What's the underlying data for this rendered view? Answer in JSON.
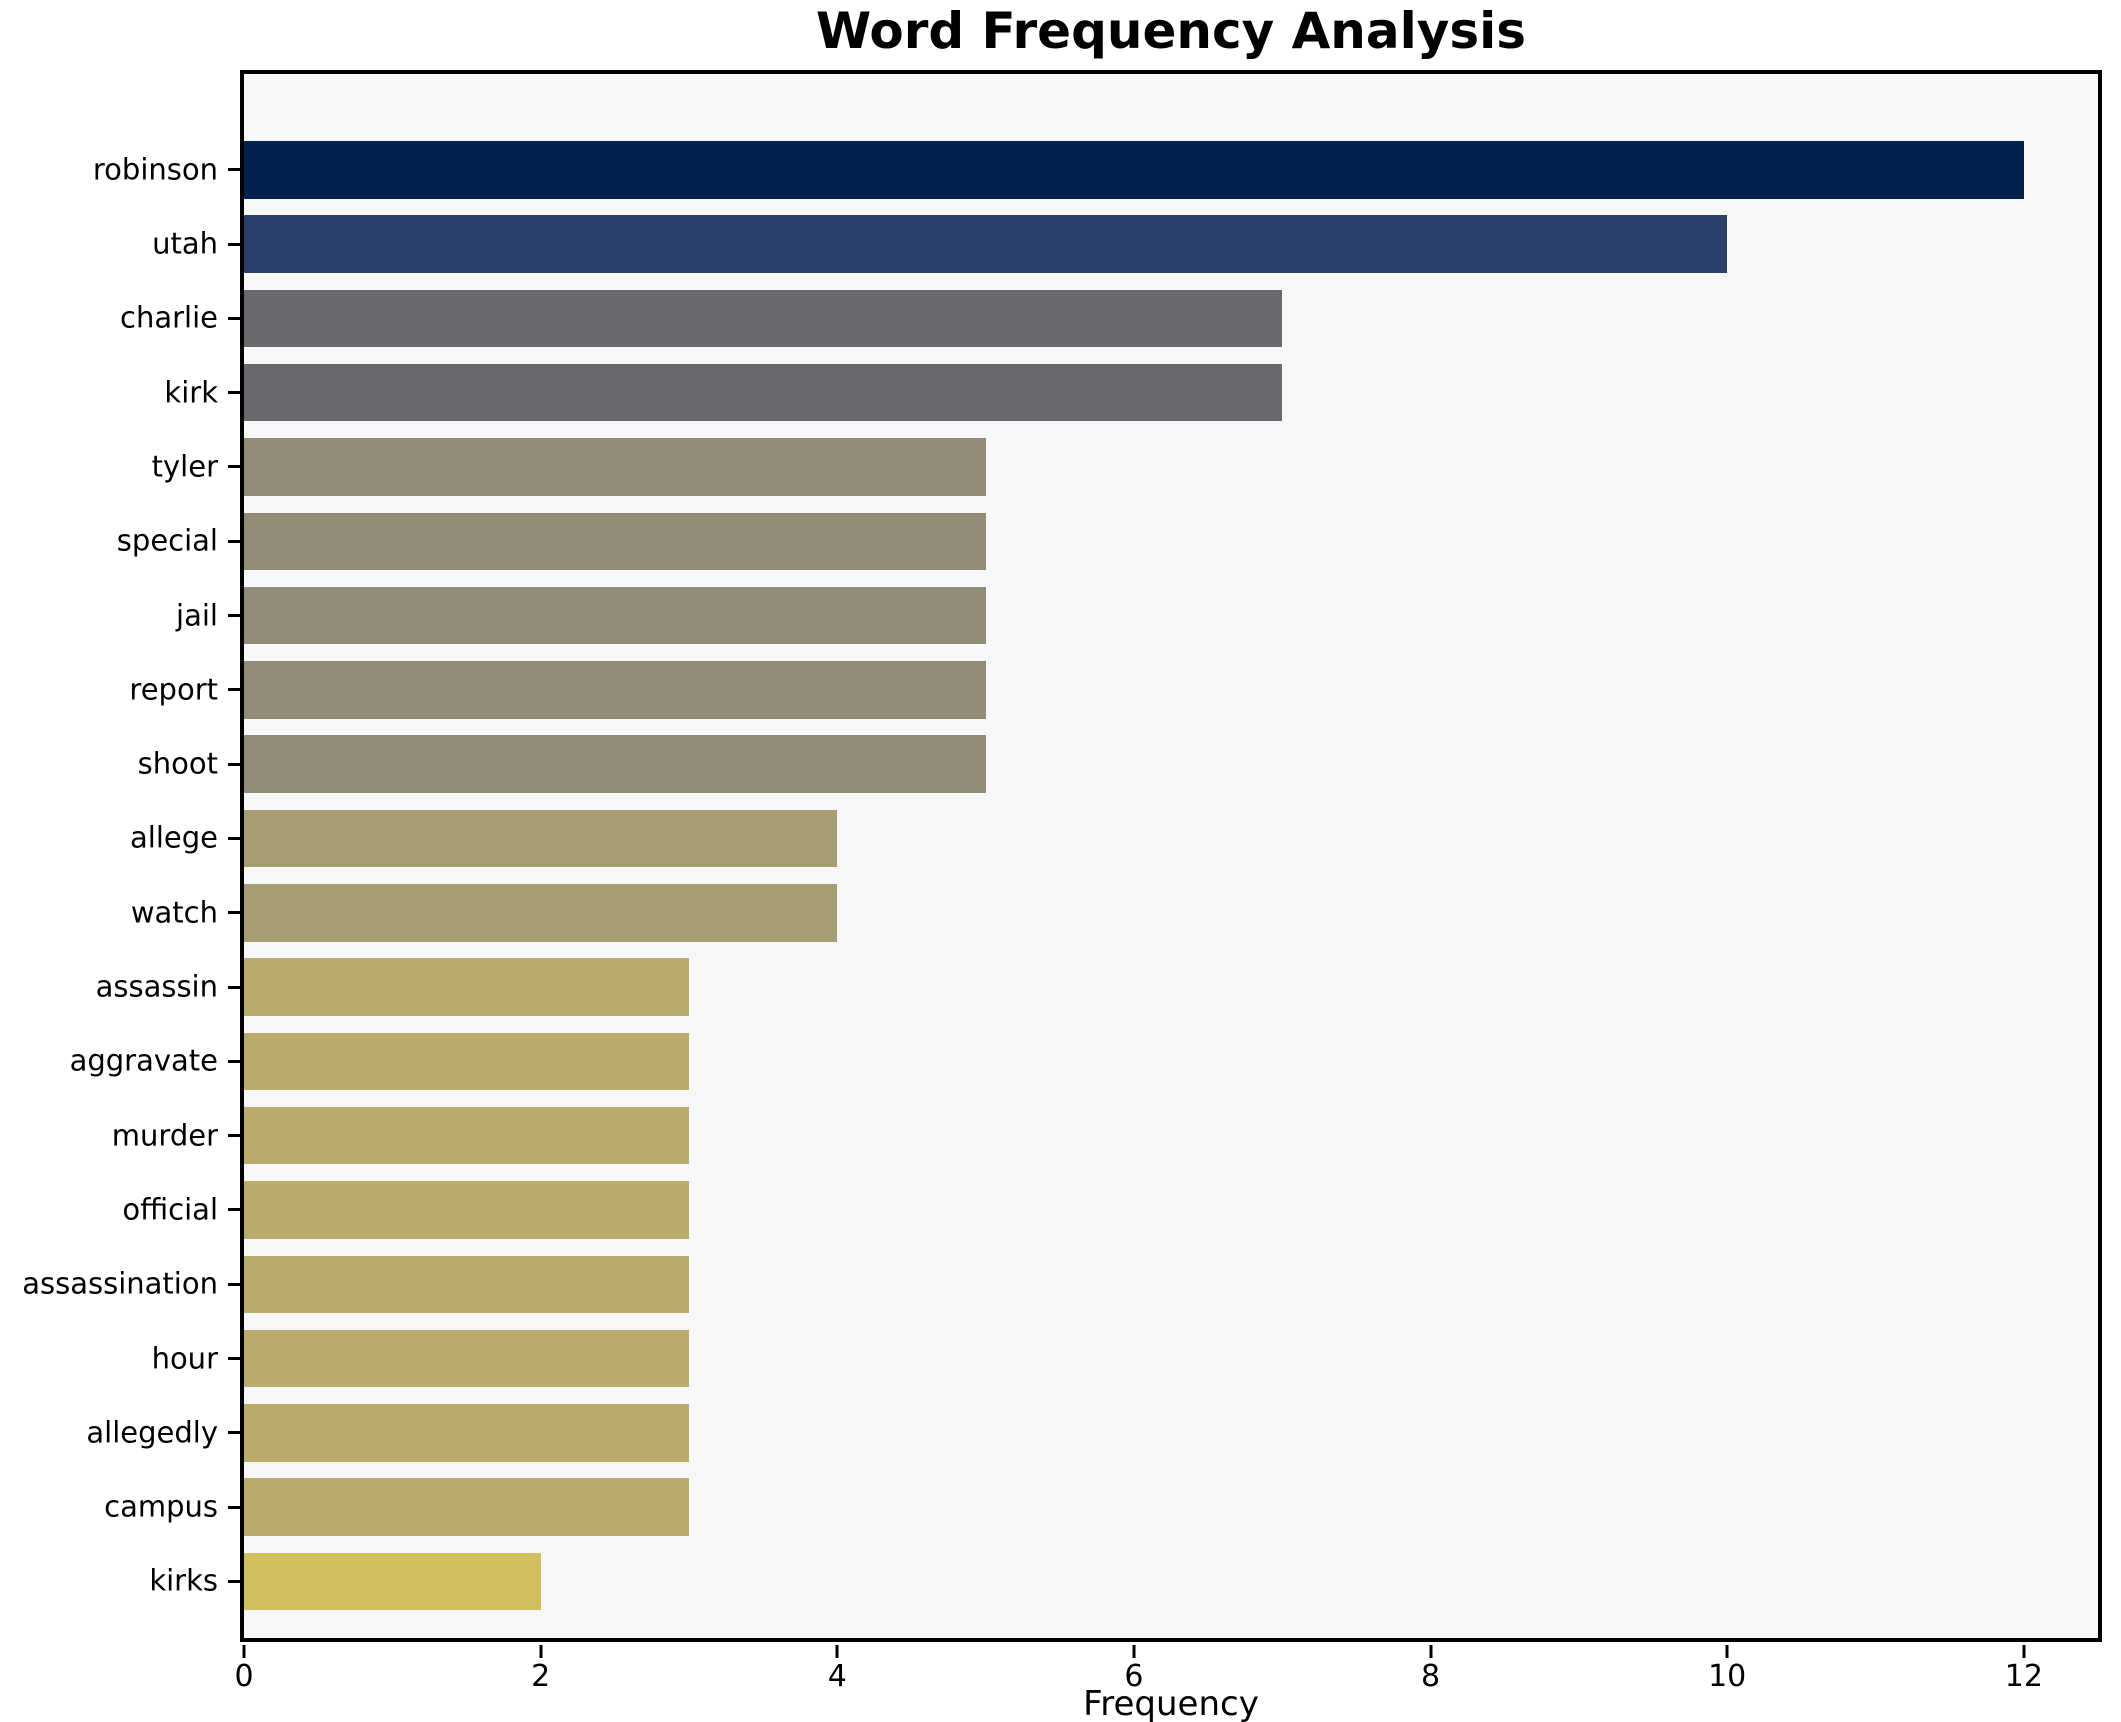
{
  "title": "Word Frequency Analysis",
  "chart_data": {
    "type": "bar",
    "orientation": "horizontal",
    "title": "Word Frequency Analysis",
    "xlabel": "Frequency",
    "ylabel": "",
    "xlim": [
      0,
      12.5
    ],
    "x_ticks": [
      0,
      2,
      4,
      6,
      8,
      10,
      12
    ],
    "grid": false,
    "legend": "none",
    "plot_background": "#f7f7f7",
    "figure_background": "#ffffff",
    "categories": [
      "robinson",
      "utah",
      "charlie",
      "kirk",
      "tyler",
      "special",
      "jail",
      "report",
      "shoot",
      "allege",
      "watch",
      "assassin",
      "aggravate",
      "murder",
      "official",
      "assassination",
      "hour",
      "allegedly",
      "campus",
      "kirks"
    ],
    "values": [
      12,
      10,
      7,
      7,
      5,
      5,
      5,
      5,
      5,
      4,
      4,
      3,
      3,
      3,
      3,
      3,
      3,
      3,
      3,
      2
    ],
    "bar_colors": [
      "#02224e",
      "#2b3f6b",
      "#696a6e",
      "#696a6e",
      "#918b78",
      "#918b78",
      "#918b78",
      "#918b78",
      "#918b78",
      "#a69d72",
      "#a69d72",
      "#b9ac6b",
      "#b9ac6b",
      "#b9ac6b",
      "#b9ac6b",
      "#b9ac6b",
      "#b9ac6b",
      "#b9ac6b",
      "#b9ac6b",
      "#d2bf5e"
    ]
  }
}
